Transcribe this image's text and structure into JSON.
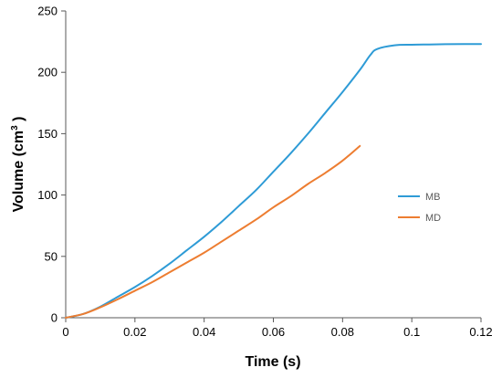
{
  "chart_data": {
    "type": "line",
    "xlabel": "Time (s)",
    "ylabel": "Volume (cm",
    "ylabel_superscript": "3",
    "ylabel_suffix": " )",
    "xlim": [
      0,
      0.12
    ],
    "ylim": [
      0,
      250
    ],
    "x_ticks": [
      0,
      0.02,
      0.04,
      0.06,
      0.08,
      0.1,
      0.12
    ],
    "x_tick_labels": [
      "0",
      "0.02",
      "0.04",
      "0.06",
      "0.08",
      "0.1",
      "0.12"
    ],
    "y_ticks": [
      0,
      50,
      100,
      150,
      200,
      250
    ],
    "y_tick_labels": [
      "0",
      "50",
      "100",
      "150",
      "200",
      "250"
    ],
    "grid": false,
    "legend_position": "right",
    "series": [
      {
        "name": "MB",
        "color": "#2E9BD6",
        "x": [
          0,
          0.005,
          0.01,
          0.015,
          0.02,
          0.025,
          0.03,
          0.035,
          0.04,
          0.045,
          0.05,
          0.055,
          0.06,
          0.065,
          0.07,
          0.075,
          0.08,
          0.085,
          0.088,
          0.09,
          0.095,
          0.1,
          0.105,
          0.11,
          0.115,
          0.12
        ],
        "y": [
          0,
          3,
          9,
          17,
          25,
          34,
          44,
          55,
          66,
          78,
          91,
          104,
          119,
          134,
          150,
          167,
          184,
          202,
          214,
          219,
          222,
          222.5,
          222.7,
          222.9,
          223,
          223
        ]
      },
      {
        "name": "MD",
        "color": "#ED7D31",
        "x": [
          0,
          0.005,
          0.01,
          0.015,
          0.02,
          0.025,
          0.03,
          0.035,
          0.04,
          0.045,
          0.05,
          0.055,
          0.06,
          0.065,
          0.07,
          0.075,
          0.08,
          0.085
        ],
        "y": [
          0,
          3,
          8.5,
          15,
          22,
          29,
          37,
          45,
          53,
          62,
          71,
          80,
          90,
          99,
          109,
          118,
          128,
          140
        ]
      }
    ]
  }
}
